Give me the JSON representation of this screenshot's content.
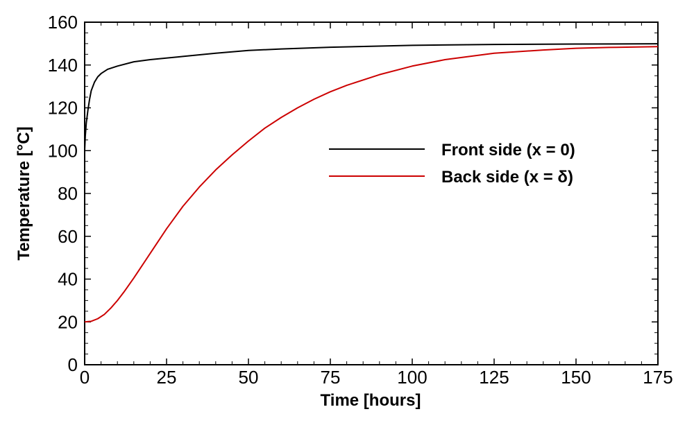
{
  "chart_data": {
    "type": "line",
    "xlabel": "Time [hours]",
    "ylabel": "Temperature [°C]",
    "xlim": [
      0,
      175
    ],
    "ylim": [
      0,
      160
    ],
    "x_ticks": [
      0,
      25,
      50,
      75,
      100,
      125,
      150,
      175
    ],
    "y_ticks": [
      0,
      20,
      40,
      60,
      80,
      100,
      120,
      140,
      160
    ],
    "grid": false,
    "legend_position": "center-right",
    "series": [
      {
        "name": "Front side (x = 0)",
        "color": "#000000",
        "x": [
          0,
          0.2,
          0.5,
          1,
          1.5,
          2,
          3,
          4,
          5,
          7,
          10,
          15,
          20,
          30,
          40,
          50,
          60,
          75,
          100,
          125,
          150,
          175
        ],
        "y": [
          100,
          107,
          113,
          119,
          124,
          128,
          132,
          134.5,
          136,
          138,
          139.5,
          141.5,
          142.5,
          144,
          145.5,
          146.8,
          147.5,
          148.3,
          149.2,
          149.6,
          149.8,
          149.9
        ]
      },
      {
        "name": "Back side (x = δ)",
        "color": "#cc0000",
        "x": [
          0,
          2,
          4,
          6,
          8,
          10,
          12,
          15,
          20,
          25,
          30,
          35,
          40,
          45,
          50,
          55,
          60,
          65,
          70,
          75,
          80,
          90,
          100,
          110,
          125,
          140,
          150,
          160,
          175
        ],
        "y": [
          20,
          20.3,
          21.5,
          23.5,
          26.5,
          30,
          34,
          40.5,
          52,
          63.5,
          74,
          83,
          91,
          98,
          104.5,
          110.5,
          115.5,
          120,
          124,
          127.5,
          130.5,
          135.5,
          139.5,
          142.5,
          145.5,
          147,
          147.8,
          148.2,
          148.6
        ]
      }
    ]
  }
}
